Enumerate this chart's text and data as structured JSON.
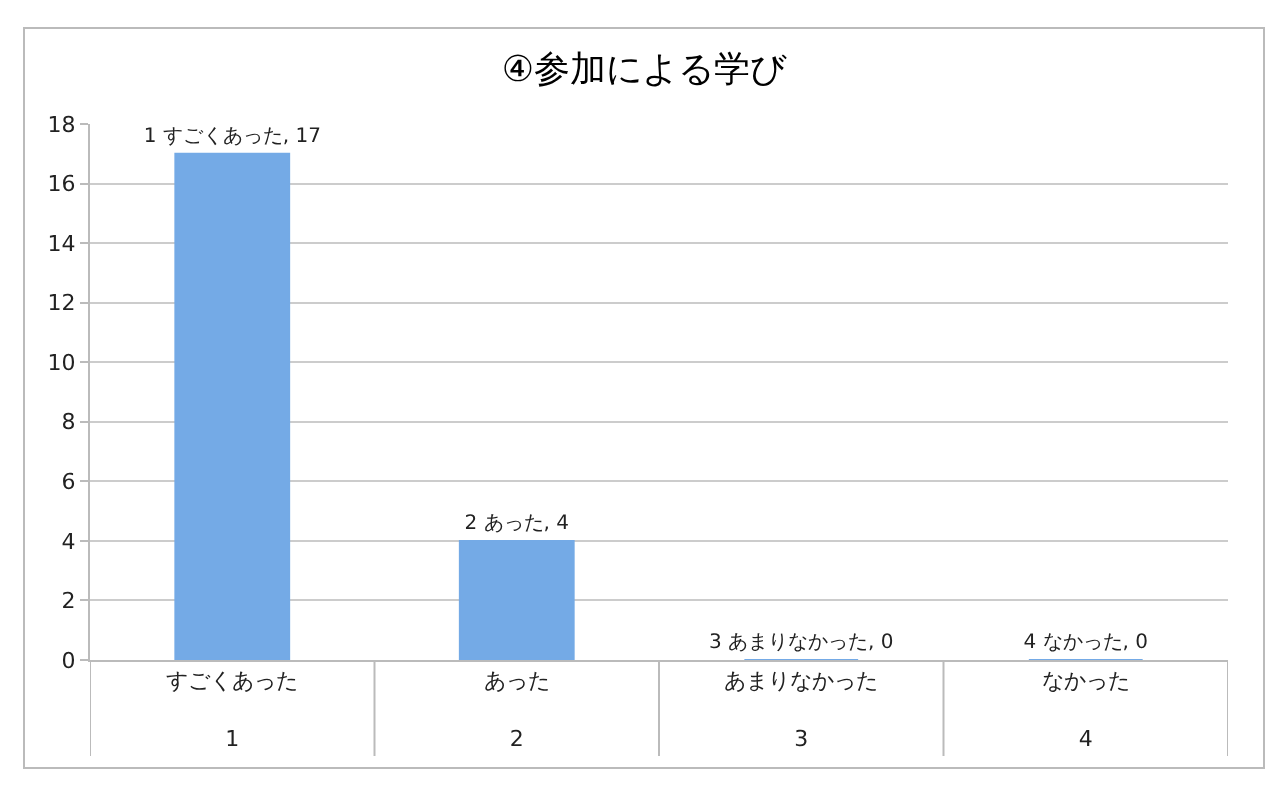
{
  "chart_data": {
    "type": "bar",
    "title": "④参加による学び",
    "categories": [
      "すごくあった\n1",
      "あった\n2",
      "あまりなかった\n3",
      "なかった\n4"
    ],
    "values": [
      17,
      4,
      0,
      0
    ],
    "color": "#74aae6",
    "value_labels": [
      "1 すごくあった, 17",
      "2 あった, 4",
      "3 あまりなかった, 0",
      "4 なかった, 0"
    ],
    "ylim": [
      0,
      18
    ],
    "yticks": [
      0,
      2,
      4,
      6,
      8,
      10,
      12,
      14,
      16,
      18
    ],
    "grid": "y",
    "legend": false
  }
}
